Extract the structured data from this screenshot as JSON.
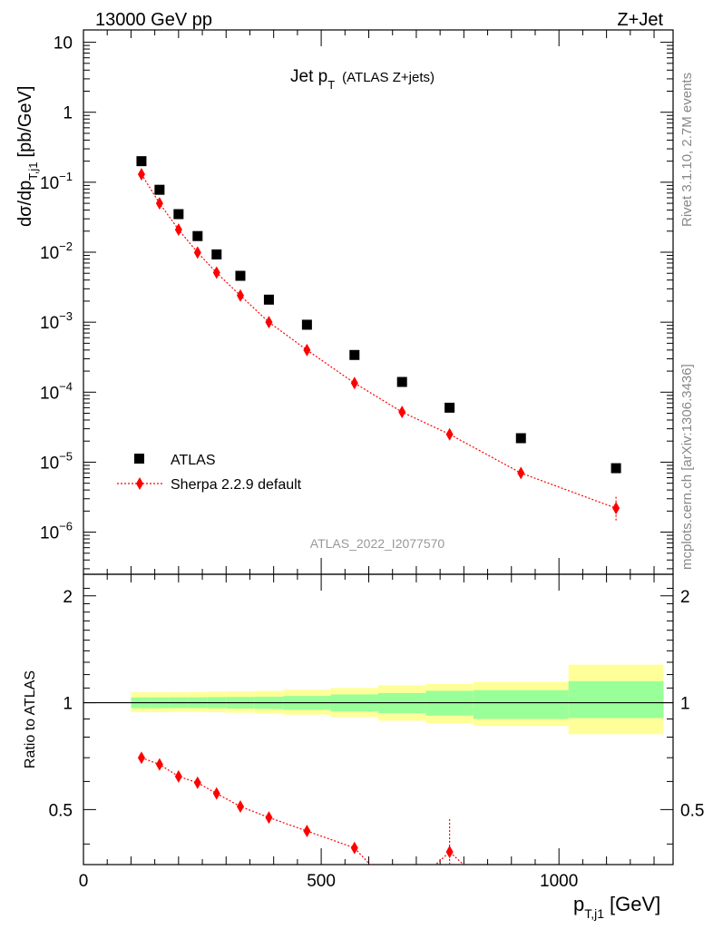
{
  "header": {
    "left": "13000 GeV pp",
    "right": "Z+Jet"
  },
  "side_labels": {
    "rivet": "Rivet 3.1.10,  2.7M events",
    "mcplots": "mcplots.cern.ch [arXiv:1306.3436]"
  },
  "analysis_id": "ATLAS_2022_I2077570",
  "chart_data": [
    {
      "type": "scatter",
      "title_main": "Jet p",
      "title_sub": "T",
      "title_extra": "(ATLAS Z+jets)",
      "ylabel": "dσ/dp",
      "ylabel_sub": "T,j1",
      "ylabel_unit": "[pb/GeV]",
      "xlabel": "p",
      "xlabel_sub": "T,j1",
      "xlabel_unit": "[GeV]",
      "xlim": [
        0,
        1240
      ],
      "ylim": [
        2.5e-07,
        15
      ],
      "yscale": "log",
      "y_ticks": [
        {
          "value": 10,
          "label": "10"
        },
        {
          "value": 1,
          "label": "1"
        },
        {
          "value": 0.1,
          "label": "10",
          "exp": "−1"
        },
        {
          "value": 0.01,
          "label": "10",
          "exp": "−2"
        },
        {
          "value": 0.001,
          "label": "10",
          "exp": "−3"
        },
        {
          "value": 0.0001,
          "label": "10",
          "exp": "−4"
        },
        {
          "value": 1e-05,
          "label": "10",
          "exp": "−5"
        },
        {
          "value": 1e-06,
          "label": "10",
          "exp": "−6"
        }
      ],
      "legend": {
        "position": "bottom-left"
      },
      "series": [
        {
          "name": "ATLAS",
          "color": "#000000",
          "marker": "square",
          "x": [
            122,
            160,
            200,
            240,
            280,
            330,
            390,
            470,
            570,
            670,
            770,
            920,
            1120
          ],
          "y": [
            0.2,
            0.078,
            0.035,
            0.017,
            0.0093,
            0.0046,
            0.0021,
            0.00092,
            0.00034,
            0.00014,
            6e-05,
            2.2e-05,
            8.2e-06
          ]
        },
        {
          "name": "Sherpa 2.2.9 default",
          "color": "#ff0000",
          "marker": "diamond",
          "line": "dotted",
          "x": [
            122,
            160,
            200,
            240,
            280,
            330,
            390,
            470,
            570,
            670,
            770,
            920,
            1120
          ],
          "y": [
            0.13,
            0.05,
            0.021,
            0.0099,
            0.0051,
            0.0024,
            0.001,
            0.0004,
            0.000135,
            5.2e-05,
            2.5e-05,
            7e-06,
            2.2e-06
          ],
          "y_err_high": [
            0,
            0,
            0,
            0,
            0,
            0,
            0,
            0,
            0,
            0,
            0,
            0,
            3.2e-06
          ],
          "y_err_low": [
            0,
            0,
            0,
            0,
            0,
            0,
            0,
            0,
            0,
            0,
            0,
            0,
            1.4e-06
          ]
        }
      ]
    },
    {
      "type": "scatter",
      "ylabel": "Ratio to ATLAS",
      "xlim": [
        0,
        1240
      ],
      "ylim": [
        0.35,
        2.3
      ],
      "yscale": "log",
      "x_ticks": [
        {
          "value": 0,
          "label": "0"
        },
        {
          "value": 500,
          "label": "500"
        },
        {
          "value": 1000,
          "label": "1000"
        }
      ],
      "y_ticks": [
        {
          "value": 2,
          "label": "2"
        },
        {
          "value": 1,
          "label": "1"
        },
        {
          "value": 0.5,
          "label": "0.5"
        }
      ],
      "reference_line": 1,
      "uncertainty_bands": {
        "bin_edges": [
          100,
          140,
          180,
          220,
          260,
          300,
          360,
          420,
          520,
          620,
          720,
          820,
          1020,
          1220
        ],
        "inner_low": [
          0.965,
          0.965,
          0.966,
          0.966,
          0.965,
          0.963,
          0.96,
          0.955,
          0.945,
          0.935,
          0.92,
          0.9,
          0.905
        ],
        "inner_high": [
          1.035,
          1.035,
          1.036,
          1.036,
          1.037,
          1.038,
          1.04,
          1.045,
          1.055,
          1.065,
          1.08,
          1.085,
          1.15
        ],
        "outer_low": [
          0.94,
          0.94,
          0.941,
          0.941,
          0.94,
          0.937,
          0.933,
          0.925,
          0.91,
          0.89,
          0.875,
          0.86,
          0.815
        ],
        "outer_high": [
          1.07,
          1.07,
          1.07,
          1.072,
          1.074,
          1.076,
          1.08,
          1.088,
          1.1,
          1.12,
          1.13,
          1.145,
          1.28
        ],
        "inner_color": "#99ff99",
        "outer_color": "#ffff99"
      },
      "series": [
        {
          "name": "Sherpa 2.2.9 default",
          "color": "#ff0000",
          "marker": "diamond",
          "line": "dotted",
          "x": [
            122,
            160,
            200,
            240,
            280,
            330,
            390,
            470,
            570,
            770
          ],
          "y": [
            0.7,
            0.67,
            0.62,
            0.595,
            0.555,
            0.51,
            0.475,
            0.435,
            0.39,
            0.38
          ],
          "y_err_high": [
            0,
            0,
            0,
            0,
            0,
            0,
            0,
            0,
            0,
            0.09
          ],
          "y_err_low": [
            0,
            0,
            0,
            0,
            0,
            0,
            0,
            0,
            0,
            0.05
          ]
        }
      ]
    }
  ]
}
